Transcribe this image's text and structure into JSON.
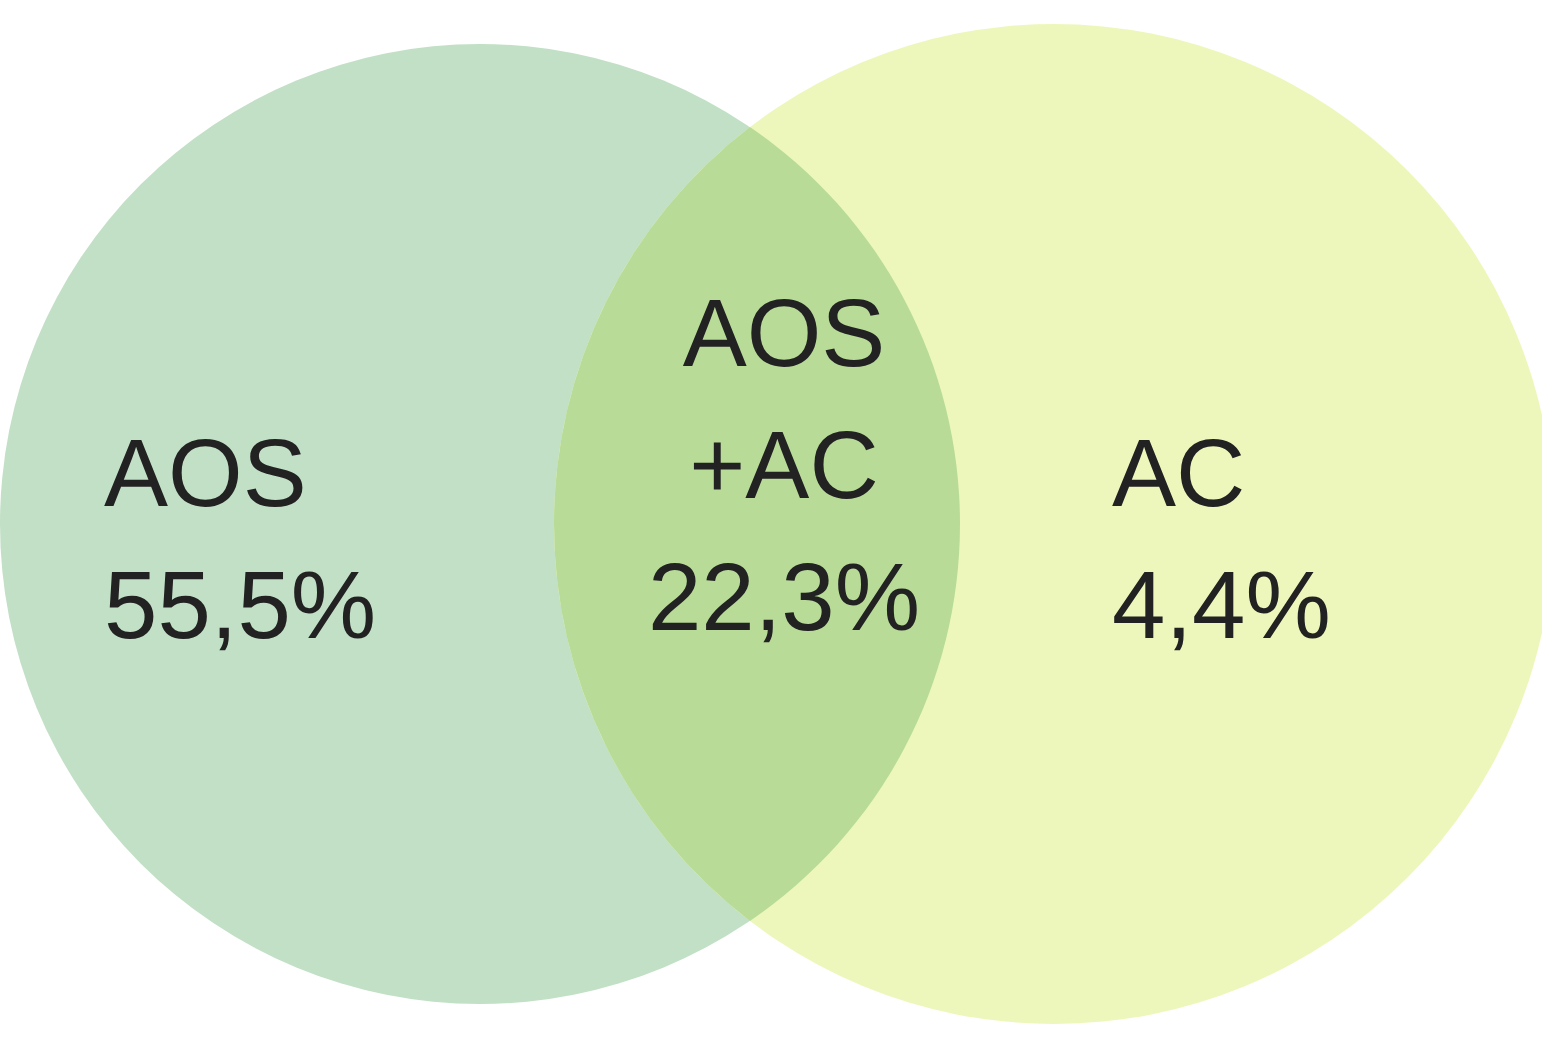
{
  "chart_data": {
    "type": "other",
    "categories": [
      "AOS",
      "AOS +AC",
      "AC"
    ],
    "values": [
      55.5,
      22.3,
      4.4
    ],
    "value_labels": [
      "55,5%",
      "22,3%",
      "4,4%"
    ],
    "colors": [
      "#c2e0c6",
      "#b8db98",
      "#eef7bb"
    ]
  }
}
